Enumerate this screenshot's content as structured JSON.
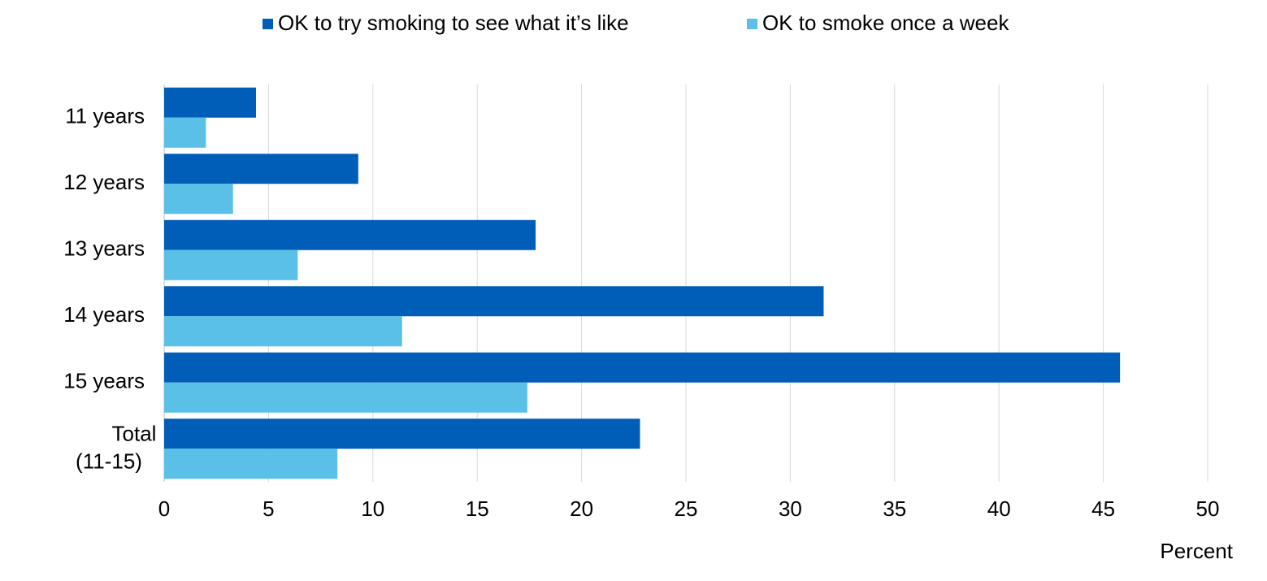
{
  "chart_data": {
    "type": "hbar",
    "categories": [
      "11 years",
      "12 years",
      "13 years",
      "14 years",
      "15 years",
      "Total (11-15)"
    ],
    "series": [
      {
        "name": "OK to try smoking to see what it’s like",
        "color": "#005eb8",
        "values": [
          4.4,
          9.3,
          17.8,
          31.6,
          45.8,
          22.8
        ]
      },
      {
        "name": "OK to smoke once a week",
        "color": "#5bc0e8",
        "values": [
          2.0,
          3.3,
          6.4,
          11.4,
          17.4,
          8.3
        ]
      }
    ],
    "x_label": "Percent",
    "xlim": [
      0,
      50
    ],
    "xticks": [
      0,
      5,
      10,
      15,
      20,
      25,
      30,
      35,
      40,
      45,
      50
    ],
    "grid": true,
    "legend": "top"
  }
}
